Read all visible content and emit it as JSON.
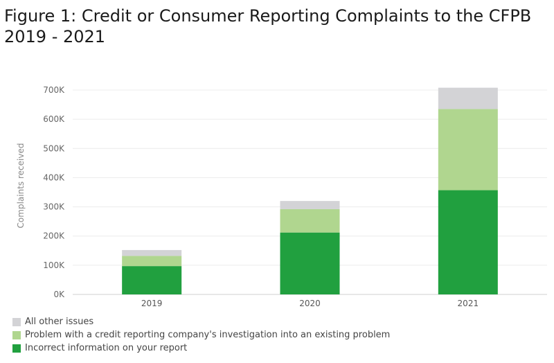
{
  "title_line1": "Figure 1: Credit or Consumer Reporting Complaints to the CFPB",
  "title_line2": "2019 - 2021",
  "chart_data": {
    "type": "bar",
    "stacked": true,
    "categories": [
      "2019",
      "2020",
      "2021"
    ],
    "series": [
      {
        "name": "Incorrect information on your report",
        "color": "#21a03f",
        "values": [
          97000,
          212000,
          357000
        ]
      },
      {
        "name": "Problem with a credit reporting company's investigation into an existing problem",
        "color": "#b0d68f",
        "values": [
          35000,
          80000,
          278000
        ]
      },
      {
        "name": "All other issues",
        "color": "#d3d3d6",
        "values": [
          20000,
          28000,
          73000
        ]
      }
    ],
    "ylabel": "Complaints received",
    "xlabel": "",
    "ylim": [
      0,
      700000
    ],
    "yticks": [
      "0K",
      "100K",
      "200K",
      "300K",
      "400K",
      "500K",
      "600K",
      "700K"
    ],
    "ytick_values": [
      0,
      100000,
      200000,
      300000,
      400000,
      500000,
      600000,
      700000
    ],
    "legend_order": [
      "All other issues",
      "Problem with a credit reporting company's investigation into an existing problem",
      "Incorrect information on your report"
    ],
    "grid": true,
    "legend_position": "bottom-left"
  }
}
